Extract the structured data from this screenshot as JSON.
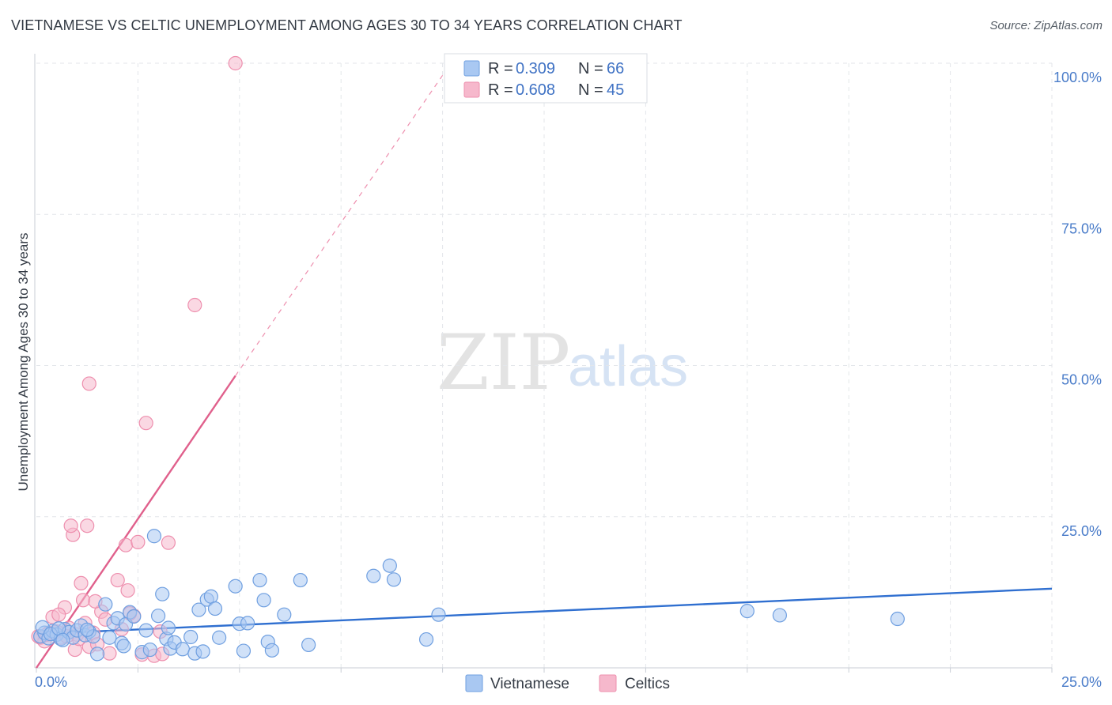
{
  "header": {
    "title": "VIETNAMESE VS CELTIC UNEMPLOYMENT AMONG AGES 30 TO 34 YEARS CORRELATION CHART",
    "source": "Source: ZipAtlas.com"
  },
  "watermark": {
    "zip": "ZIP",
    "atlas": "atlas"
  },
  "legend": {
    "rows": [
      {
        "r_label": "R = ",
        "r_value": "0.309",
        "n_label": "N = ",
        "n_value": "66",
        "color": "#a9c8f2"
      },
      {
        "r_label": "R = ",
        "r_value": "0.608",
        "n_label": "N = ",
        "n_value": "45",
        "color": "#f6b8cc"
      }
    ]
  },
  "colors": {
    "vietnamese_fill": "#a9c8f2",
    "vietnamese_stroke": "#6f9fe0",
    "vietnamese_line": "#2f6fd0",
    "celtics_fill": "#f6b8cc",
    "celtics_stroke": "#ee8fae",
    "celtics_line": "#e0608c",
    "grid": "#e3e6ea",
    "tick_text": "#4a7cc9"
  },
  "chart_data": {
    "type": "scatter",
    "title": "VIETNAMESE VS CELTIC UNEMPLOYMENT AMONG AGES 30 TO 34 YEARS CORRELATION CHART",
    "xlabel": "",
    "ylabel": "Unemployment Among Ages 30 to 34 years",
    "xlim": [
      0,
      25
    ],
    "ylim": [
      0,
      100
    ],
    "x_tick_labels": [
      "0.0%",
      "25.0%"
    ],
    "y_ticks": [
      25,
      50,
      75,
      100
    ],
    "y_tick_labels": [
      "25.0%",
      "50.0%",
      "75.0%",
      "100.0%"
    ],
    "grid": true,
    "legend_position": "bottom-center",
    "series": [
      {
        "name": "Vietnamese",
        "r": 0.309,
        "n": 66,
        "trend": {
          "x": [
            0,
            25
          ],
          "y": [
            5.6,
            13.1
          ],
          "dashed_after": null
        },
        "points": [
          [
            0.1,
            5.2
          ],
          [
            0.2,
            5.8
          ],
          [
            0.3,
            4.9
          ],
          [
            0.4,
            6.1
          ],
          [
            0.5,
            5.5
          ],
          [
            0.6,
            4.8
          ],
          [
            0.7,
            6.4
          ],
          [
            0.8,
            5.9
          ],
          [
            0.9,
            5.0
          ],
          [
            1.0,
            6.2
          ],
          [
            1.1,
            7.0
          ],
          [
            1.2,
            5.4
          ],
          [
            1.3,
            6.0
          ],
          [
            1.4,
            5.2
          ],
          [
            1.5,
            2.3
          ],
          [
            1.7,
            10.5
          ],
          [
            1.8,
            5.0
          ],
          [
            1.9,
            7.4
          ],
          [
            2.0,
            8.2
          ],
          [
            2.1,
            4.1
          ],
          [
            2.15,
            3.6
          ],
          [
            2.2,
            7.2
          ],
          [
            2.3,
            9.2
          ],
          [
            2.4,
            8.5
          ],
          [
            2.6,
            2.6
          ],
          [
            2.7,
            6.2
          ],
          [
            2.8,
            3.0
          ],
          [
            2.9,
            21.8
          ],
          [
            3.0,
            8.6
          ],
          [
            3.1,
            12.2
          ],
          [
            3.2,
            4.8
          ],
          [
            3.25,
            6.6
          ],
          [
            3.3,
            3.2
          ],
          [
            3.4,
            4.2
          ],
          [
            3.6,
            3.1
          ],
          [
            3.8,
            5.1
          ],
          [
            3.9,
            2.4
          ],
          [
            4.0,
            9.6
          ],
          [
            4.1,
            2.7
          ],
          [
            4.2,
            11.3
          ],
          [
            4.3,
            11.8
          ],
          [
            4.4,
            9.8
          ],
          [
            4.5,
            5.0
          ],
          [
            4.9,
            13.5
          ],
          [
            5.0,
            7.3
          ],
          [
            5.1,
            2.8
          ],
          [
            5.5,
            14.5
          ],
          [
            5.6,
            11.2
          ],
          [
            5.7,
            4.3
          ],
          [
            5.8,
            2.9
          ],
          [
            6.1,
            8.8
          ],
          [
            6.5,
            14.5
          ],
          [
            6.7,
            3.8
          ],
          [
            8.3,
            15.2
          ],
          [
            8.7,
            16.9
          ],
          [
            8.8,
            14.6
          ],
          [
            9.6,
            4.7
          ],
          [
            9.9,
            8.8
          ],
          [
            17.5,
            9.4
          ],
          [
            18.3,
            8.7
          ],
          [
            21.2,
            8.1
          ],
          [
            0.15,
            6.7
          ],
          [
            0.35,
            5.6
          ],
          [
            0.55,
            6.5
          ],
          [
            0.65,
            4.6
          ],
          [
            1.25,
            6.3
          ],
          [
            5.2,
            7.4
          ]
        ]
      },
      {
        "name": "Celtics",
        "r": 0.608,
        "n": 45,
        "trend": {
          "x": [
            0,
            4.9
          ],
          "y": [
            0,
            48.3
          ],
          "dashed_to": [
            10,
            98
          ]
        },
        "points": [
          [
            0.1,
            5.0
          ],
          [
            0.2,
            4.4
          ],
          [
            0.3,
            5.8
          ],
          [
            0.4,
            8.4
          ],
          [
            0.5,
            6.0
          ],
          [
            0.6,
            5.0
          ],
          [
            0.7,
            10.0
          ],
          [
            0.8,
            6.6
          ],
          [
            0.9,
            22.0
          ],
          [
            1.0,
            5.5
          ],
          [
            1.1,
            14.0
          ],
          [
            1.15,
            11.2
          ],
          [
            1.2,
            7.4
          ],
          [
            1.3,
            3.5
          ],
          [
            1.4,
            5.8
          ],
          [
            1.5,
            3.9
          ],
          [
            1.6,
            9.3
          ],
          [
            1.7,
            8.0
          ],
          [
            1.8,
            2.4
          ],
          [
            2.0,
            14.5
          ],
          [
            2.1,
            6.4
          ],
          [
            2.2,
            20.3
          ],
          [
            2.25,
            12.8
          ],
          [
            2.4,
            8.6
          ],
          [
            2.5,
            20.8
          ],
          [
            2.6,
            2.2
          ],
          [
            2.7,
            40.5
          ],
          [
            2.9,
            2.0
          ],
          [
            3.1,
            2.3
          ],
          [
            3.25,
            20.7
          ],
          [
            3.9,
            60.0
          ],
          [
            4.9,
            100.0
          ],
          [
            1.3,
            47.0
          ],
          [
            0.85,
            23.5
          ],
          [
            1.25,
            23.5
          ],
          [
            0.05,
            5.2
          ],
          [
            0.25,
            5.5
          ],
          [
            0.45,
            5.9
          ],
          [
            0.95,
            3.0
          ],
          [
            1.05,
            4.8
          ],
          [
            0.55,
            8.8
          ],
          [
            1.45,
            11.0
          ],
          [
            2.3,
            9.0
          ],
          [
            3.05,
            6.0
          ],
          [
            0.75,
            5.2
          ]
        ]
      }
    ]
  },
  "bottom_legend": {
    "items": [
      {
        "label": "Vietnamese",
        "color": "#a9c8f2"
      },
      {
        "label": "Celtics",
        "color": "#f6b8cc"
      }
    ]
  }
}
